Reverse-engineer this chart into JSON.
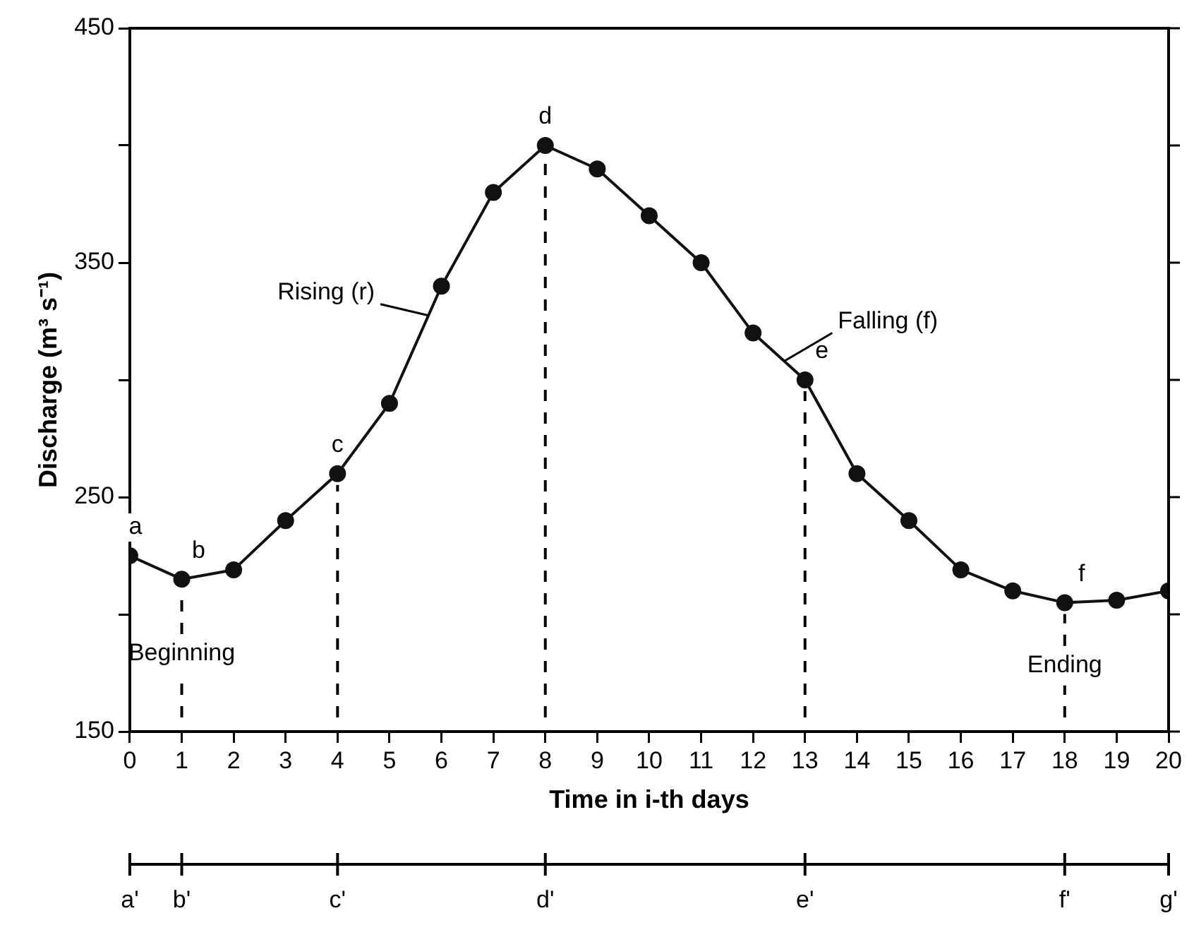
{
  "chart_data": {
    "type": "line",
    "xlabel": "Time in i-th days",
    "ylabel": "Discharge (m³ s⁻¹)",
    "x": [
      0,
      1,
      2,
      3,
      4,
      5,
      6,
      7,
      8,
      9,
      10,
      11,
      12,
      13,
      14,
      15,
      16,
      17,
      18,
      19,
      20
    ],
    "series": [
      {
        "color": "#111111",
        "values": [
          225,
          215,
          219,
          240,
          260,
          290,
          340,
          380,
          400,
          390,
          370,
          350,
          320,
          300,
          260,
          240,
          219,
          210,
          205,
          206,
          210
        ]
      }
    ],
    "xlim": [
      0,
      20
    ],
    "xticks": [
      0,
      1,
      2,
      3,
      4,
      5,
      6,
      7,
      8,
      9,
      10,
      11,
      12,
      13,
      14,
      15,
      16,
      17,
      18,
      19,
      20
    ],
    "ylim": [
      150,
      450
    ],
    "yticks": [
      150,
      {
        "value": 200,
        "label": null
      },
      250,
      {
        "value": 300,
        "label": null
      },
      350,
      {
        "value": 400,
        "label": null
      },
      450
    ],
    "ref_lines": [
      {
        "axis": "x",
        "value": 1,
        "line_style": "dashed",
        "label": "Beginning"
      },
      {
        "axis": "x",
        "value": 4,
        "line_style": "dashed"
      },
      {
        "axis": "x",
        "value": 8,
        "line_style": "dashed"
      },
      {
        "axis": "x",
        "value": 13,
        "line_style": "dashed"
      },
      {
        "axis": "x",
        "value": 18,
        "line_style": "dashed",
        "label": "Ending"
      }
    ],
    "annotations": [
      {
        "text": "a",
        "x": 0,
        "y": 225
      },
      {
        "text": "b",
        "x": 1,
        "y": 215
      },
      {
        "text": "c",
        "x": 4,
        "y": 260
      },
      {
        "text": "d",
        "x": 8,
        "y": 400
      },
      {
        "text": "e",
        "x": 13,
        "y": 300
      },
      {
        "text": "f",
        "x": 18,
        "y": 205
      },
      {
        "text": "Rising (r)",
        "x": 5.75,
        "y": 327.5
      },
      {
        "text": "Falling (f)",
        "x": 12.6,
        "y": 308
      },
      {
        "text": "a'",
        "x": 0
      },
      {
        "text": "b'",
        "x": 1
      },
      {
        "text": "c'",
        "x": 4
      },
      {
        "text": "d'",
        "x": 8
      },
      {
        "text": "e'",
        "x": 13
      },
      {
        "text": "f'",
        "x": 18
      },
      {
        "text": "g'",
        "x": 20
      }
    ],
    "marker": "circle",
    "line_style": "solid",
    "grid": false,
    "legend": false
  }
}
